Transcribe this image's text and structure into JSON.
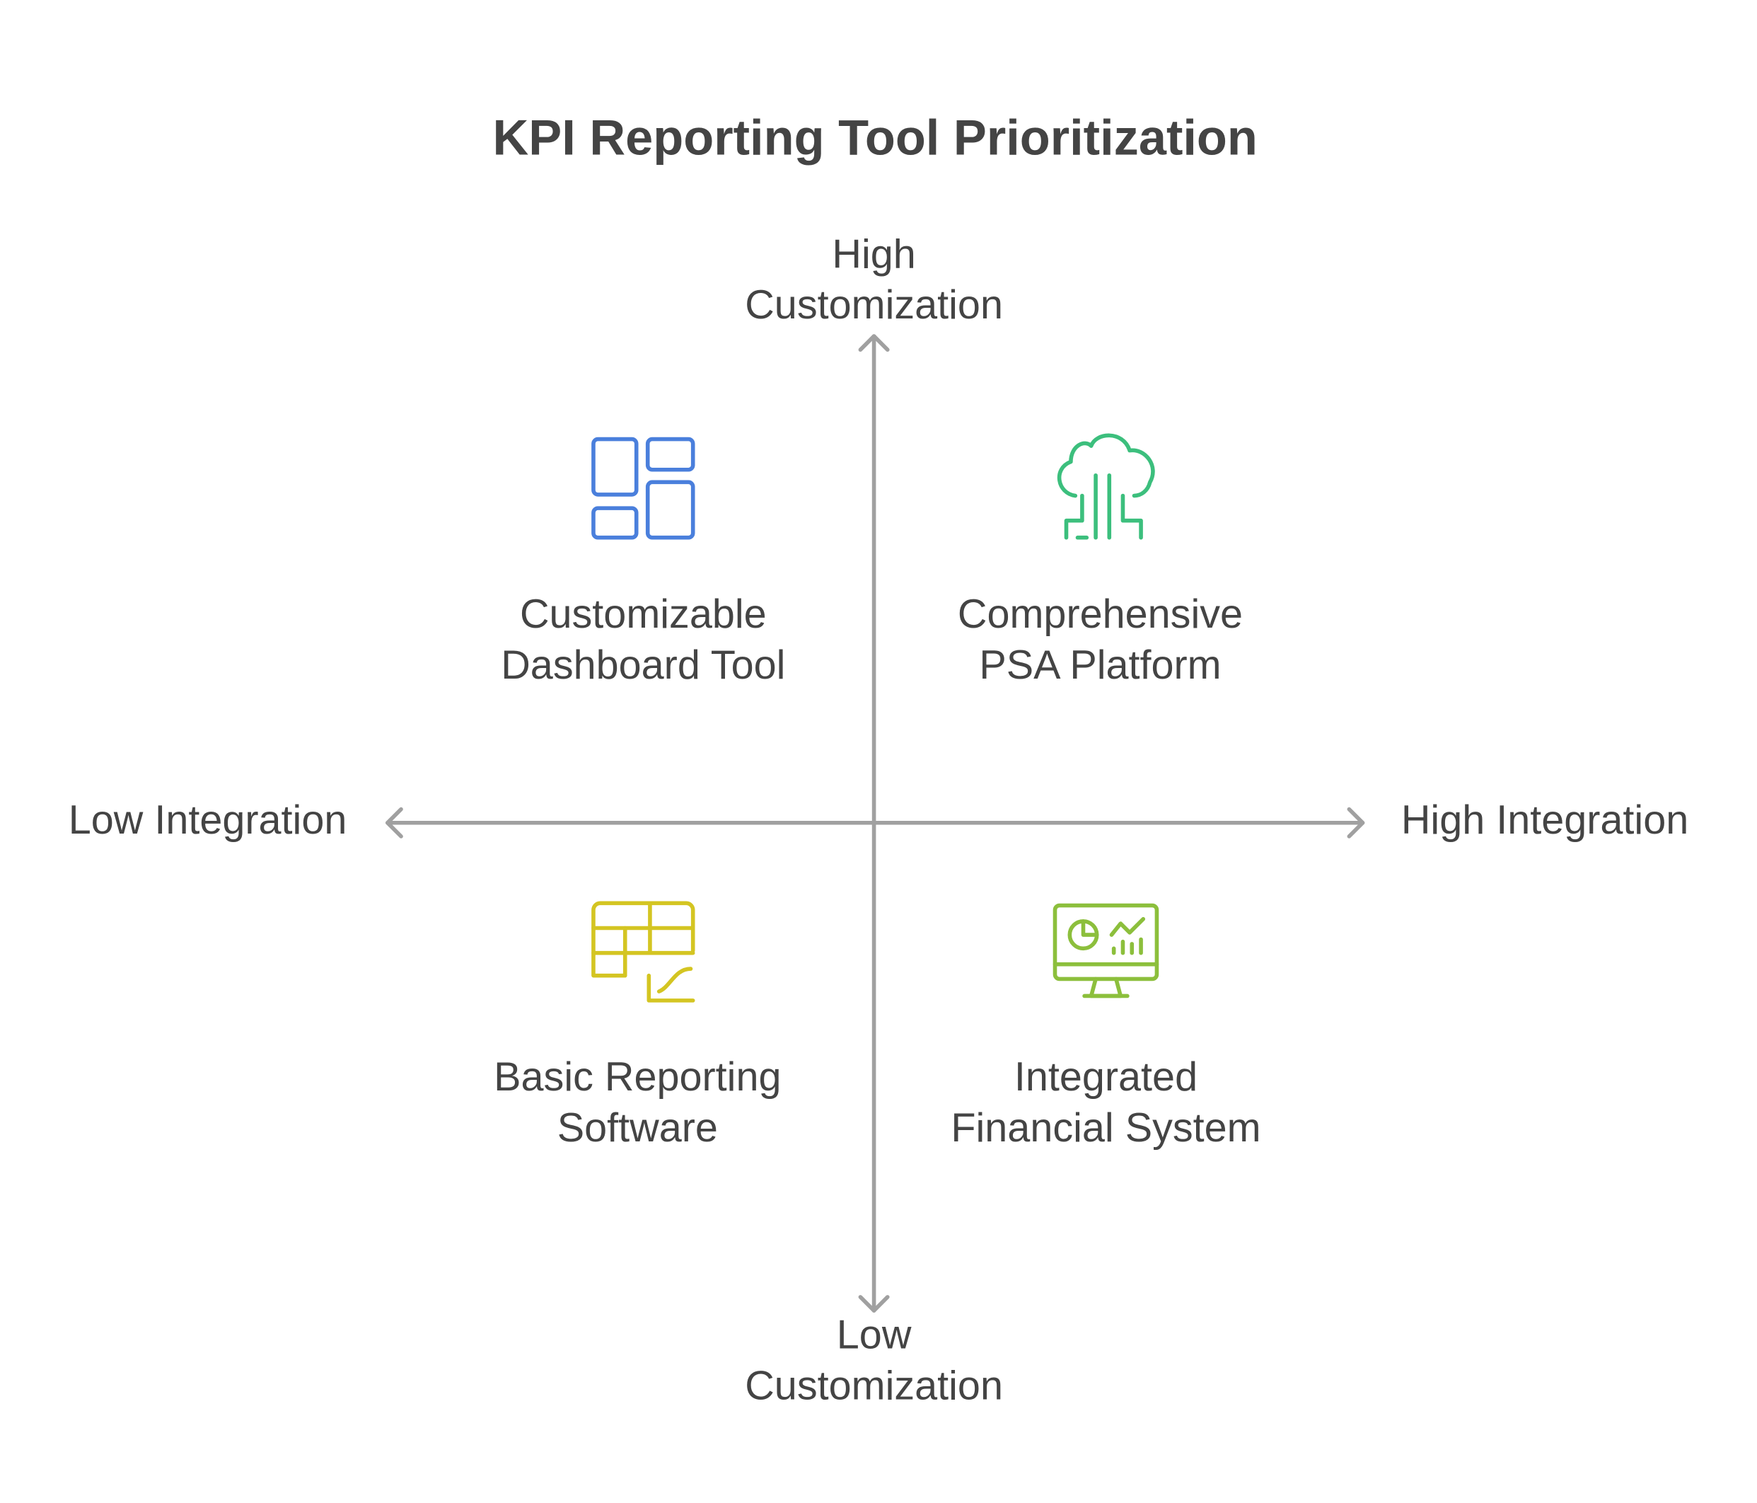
{
  "title": "KPI Reporting Tool Prioritization",
  "axes": {
    "top": [
      "High",
      "Customization"
    ],
    "bottom": [
      "Low",
      "Customization"
    ],
    "left": "Low Integration",
    "right": "High Integration"
  },
  "quadrants": [
    {
      "label": [
        "Customizable",
        "Dashboard Tool"
      ]
    },
    {
      "label": [
        "Comprehensive",
        "PSA Platform"
      ]
    },
    {
      "label": [
        "Basic Reporting",
        "Software"
      ]
    },
    {
      "label": [
        "Integrated",
        "Financial System"
      ]
    }
  ]
}
